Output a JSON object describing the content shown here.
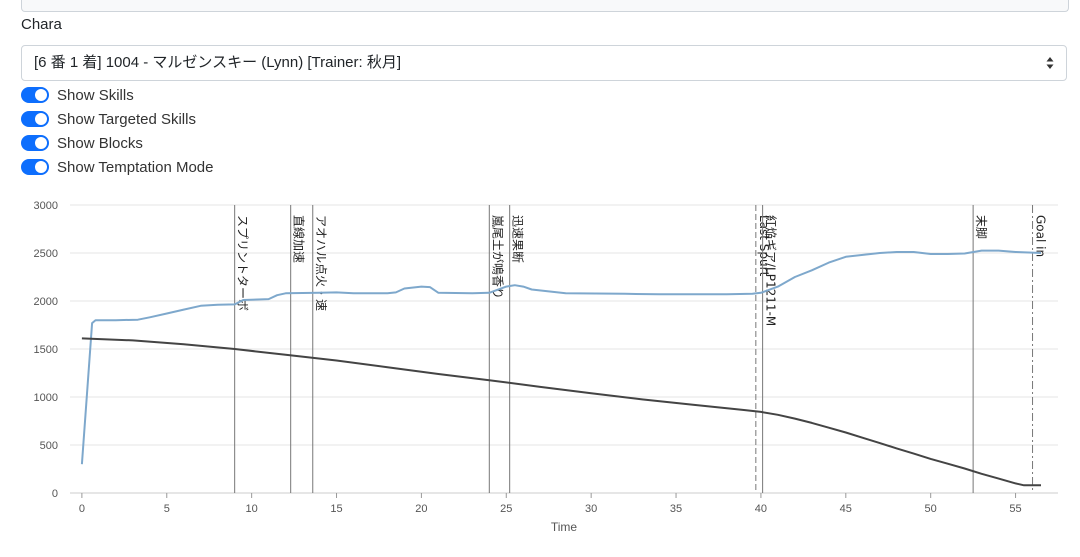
{
  "form": {
    "chara_label": "Chara",
    "chara_selected": "[6 番 1 着] 1004 - マルゼンスキー (Lynn) [Trainer: 秋月]",
    "toggles": [
      {
        "label": "Show Skills",
        "on": true
      },
      {
        "label": "Show Targeted Skills",
        "on": true
      },
      {
        "label": "Show Blocks",
        "on": true
      },
      {
        "label": "Show Temptation Mode",
        "on": true
      }
    ]
  },
  "chart_data": {
    "type": "line",
    "title": "",
    "xlabel": "Time",
    "ylabel": "",
    "xlim": [
      -0.7,
      57.5
    ],
    "ylim": [
      0,
      3000
    ],
    "x_ticks": [
      0,
      5,
      10,
      15,
      20,
      25,
      30,
      35,
      40,
      45,
      50,
      55
    ],
    "y_ticks": [
      0,
      500,
      1000,
      1500,
      2000,
      2500,
      3000
    ],
    "grid": "horizontal",
    "series": [
      {
        "color": "#7ea8cc",
        "points": [
          [
            0,
            300
          ],
          [
            0.6,
            1770
          ],
          [
            0.8,
            1800
          ],
          [
            2,
            1800
          ],
          [
            3.3,
            1805
          ],
          [
            4,
            1830
          ],
          [
            5,
            1870
          ],
          [
            6,
            1910
          ],
          [
            7,
            1950
          ],
          [
            8,
            1960
          ],
          [
            9,
            1965
          ],
          [
            9.5,
            2010
          ],
          [
            11,
            2020
          ],
          [
            11.5,
            2060
          ],
          [
            12,
            2080
          ],
          [
            14,
            2085
          ],
          [
            15,
            2090
          ],
          [
            16,
            2080
          ],
          [
            18,
            2080
          ],
          [
            18.5,
            2090
          ],
          [
            19,
            2130
          ],
          [
            20,
            2150
          ],
          [
            20.5,
            2145
          ],
          [
            21,
            2085
          ],
          [
            23,
            2080
          ],
          [
            24,
            2085
          ],
          [
            25,
            2150
          ],
          [
            25.5,
            2165
          ],
          [
            26,
            2150
          ],
          [
            26.5,
            2120
          ],
          [
            27.5,
            2100
          ],
          [
            28.5,
            2080
          ],
          [
            32,
            2075
          ],
          [
            34,
            2070
          ],
          [
            38,
            2070
          ],
          [
            39.5,
            2075
          ],
          [
            40,
            2085
          ],
          [
            41,
            2150
          ],
          [
            42,
            2250
          ],
          [
            43,
            2320
          ],
          [
            44,
            2400
          ],
          [
            45,
            2460
          ],
          [
            46,
            2480
          ],
          [
            47,
            2500
          ],
          [
            48,
            2510
          ],
          [
            49,
            2510
          ],
          [
            50,
            2490
          ],
          [
            51,
            2490
          ],
          [
            52,
            2495
          ],
          [
            53,
            2525
          ],
          [
            54,
            2525
          ],
          [
            55,
            2510
          ],
          [
            56.5,
            2500
          ]
        ]
      },
      {
        "color": "#444444",
        "points": [
          [
            0,
            1610
          ],
          [
            3,
            1590
          ],
          [
            6,
            1550
          ],
          [
            9,
            1500
          ],
          [
            12,
            1440
          ],
          [
            15,
            1380
          ],
          [
            18,
            1310
          ],
          [
            21,
            1240
          ],
          [
            24,
            1175
          ],
          [
            27,
            1105
          ],
          [
            30,
            1040
          ],
          [
            33,
            975
          ],
          [
            36,
            920
          ],
          [
            39,
            865
          ],
          [
            40,
            845
          ],
          [
            41,
            815
          ],
          [
            42,
            775
          ],
          [
            43,
            730
          ],
          [
            44,
            680
          ],
          [
            45,
            630
          ],
          [
            46,
            575
          ],
          [
            47,
            520
          ],
          [
            48,
            465
          ],
          [
            49,
            410
          ],
          [
            50,
            355
          ],
          [
            51,
            305
          ],
          [
            52,
            255
          ],
          [
            53,
            200
          ],
          [
            54,
            150
          ],
          [
            55,
            100
          ],
          [
            55.5,
            80
          ],
          [
            56.5,
            80
          ]
        ]
      }
    ],
    "annotations": [
      {
        "x": 9.0,
        "label": "スプリントターボ",
        "style": "solid"
      },
      {
        "x": 12.3,
        "label": "直線加速",
        "style": "solid"
      },
      {
        "x": 13.6,
        "label": "アオハル点火・速",
        "style": "solid"
      },
      {
        "x": 24.0,
        "label": "嵐尾土が鳴香り",
        "style": "solid"
      },
      {
        "x": 25.2,
        "label": "迅速果断",
        "style": "solid"
      },
      {
        "x": 39.7,
        "label": "Last Spurt",
        "style": "dashed"
      },
      {
        "x": 40.1,
        "label": "紅焔ギア/LP1211-M",
        "style": "solid"
      },
      {
        "x": 52.5,
        "label": "末脚",
        "style": "solid"
      },
      {
        "x": 56.0,
        "label": "Goal in",
        "style": "dashdot"
      }
    ]
  }
}
